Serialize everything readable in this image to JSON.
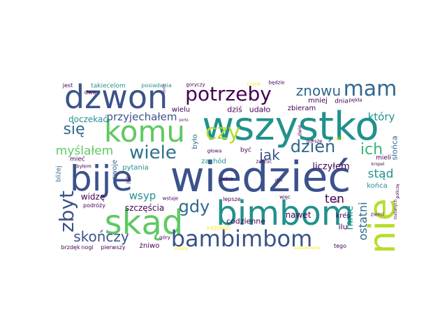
{
  "colors": {
    "background": "#ffffff",
    "c1": "#3b528b",
    "c2": "#21918c",
    "c3": "#5ec962",
    "c4": "#b5de2b",
    "c5": "#440154",
    "c6": "#31688e",
    "c7": "#2c728e",
    "c8": "#35b779",
    "c9": "#fde725",
    "c10": "#6ece58"
  },
  "words": [
    {
      "id": "wiedziec",
      "text": "wiedzieć"
    },
    {
      "id": "wszystko",
      "text": "wszystko"
    },
    {
      "id": "bije",
      "text": "bije"
    },
    {
      "id": "bimbom",
      "text": "bimbom"
    },
    {
      "id": "dzwon",
      "text": "dzwon"
    },
    {
      "id": "skad",
      "text": "skąd"
    },
    {
      "id": "nie",
      "text": "nie"
    },
    {
      "id": "bambimbom",
      "text": "bambimbom"
    },
    {
      "id": "komu",
      "text": "komu"
    },
    {
      "id": "potrzeby",
      "text": "potrzeby"
    },
    {
      "id": "mam",
      "text": "mam"
    },
    {
      "id": "czy",
      "text": "czy"
    },
    {
      "id": "wiele",
      "text": "wiele"
    },
    {
      "id": "znowu",
      "text": "znowu"
    },
    {
      "id": "zbyt",
      "text": "zbyt"
    },
    {
      "id": "dzien",
      "text": "dzień"
    },
    {
      "id": "gdy",
      "text": "gdy"
    },
    {
      "id": "sie",
      "text": "się"
    },
    {
      "id": "ich",
      "text": "ich"
    },
    {
      "id": "skonczy",
      "text": "skończy"
    },
    {
      "id": "jak",
      "text": "jak"
    },
    {
      "id": "myslalem",
      "text": "myślałem"
    },
    {
      "id": "przyjechalem",
      "text": "przyjechałem"
    },
    {
      "id": "ktory",
      "text": "który"
    },
    {
      "id": "ten",
      "text": "ten"
    },
    {
      "id": "stad",
      "text": "stąd"
    },
    {
      "id": "ostatni",
      "text": "ostatni"
    },
    {
      "id": "mnie",
      "text": "mnie"
    },
    {
      "id": "wsyp",
      "text": "wsyp"
    },
    {
      "id": "doczekac",
      "text": "doczekać"
    },
    {
      "id": "liczylem",
      "text": "liczyłem"
    },
    {
      "id": "szczescia",
      "text": "szczęścia"
    },
    {
      "id": "widze",
      "text": "widzę"
    },
    {
      "id": "codzienne",
      "text": "codzienne"
    },
    {
      "id": "nawet",
      "text": "nawet"
    },
    {
      "id": "dzis",
      "text": "dziś"
    },
    {
      "id": "udalo",
      "text": "udało"
    },
    {
      "id": "zbieram",
      "text": "zbieram"
    },
    {
      "id": "mniej",
      "text": "mniej"
    },
    {
      "id": "konca",
      "text": "końca"
    },
    {
      "id": "slonca",
      "text": "słońca"
    },
    {
      "id": "ilu",
      "text": "ilu"
    },
    {
      "id": "kres",
      "text": "kres"
    },
    {
      "id": "zachod",
      "text": "zachód"
    },
    {
      "id": "pytania",
      "text": "pytania"
    },
    {
      "id": "zniwo",
      "text": "żniwo"
    },
    {
      "id": "pierwszy",
      "text": "pierwszy"
    },
    {
      "id": "takiecelom",
      "text": "takiecelom"
    },
    {
      "id": "posiadania",
      "text": "posiadania"
    },
    {
      "id": "wielu",
      "text": "wielu"
    },
    {
      "id": "bylo",
      "text": "było"
    },
    {
      "id": "swoje",
      "text": "swoje"
    },
    {
      "id": "blizej",
      "text": "bliżej"
    },
    {
      "id": "miec",
      "text": "mieć"
    },
    {
      "id": "bylem",
      "text": "byłem"
    },
    {
      "id": "byc",
      "text": "być"
    },
    {
      "id": "podrozy",
      "text": "podróży"
    },
    {
      "id": "brzdek",
      "text": "brzdęk"
    },
    {
      "id": "nogi",
      "text": "nogi"
    },
    {
      "id": "jest",
      "text": "jest"
    },
    {
      "id": "dwa",
      "text": "dwa"
    },
    {
      "id": "goryczy",
      "text": "goryczy"
    },
    {
      "id": "bedzie",
      "text": "będzie"
    },
    {
      "id": "czara",
      "text": "czara"
    },
    {
      "id": "dnia",
      "text": "dnia"
    },
    {
      "id": "pekla",
      "text": "pękła"
    },
    {
      "id": "glowa",
      "text": "głowa"
    },
    {
      "id": "pelna",
      "text": "pełna"
    },
    {
      "id": "lepsze",
      "text": "lepsze"
    },
    {
      "id": "wiec",
      "text": "więc"
    },
    {
      "id": "kazdego",
      "text": "każdego"
    },
    {
      "id": "gory",
      "text": "góry"
    },
    {
      "id": "wstaje",
      "text": "wstaje"
    },
    {
      "id": "juz",
      "text": "już"
    },
    {
      "id": "mieli",
      "text": "mieli"
    },
    {
      "id": "gorsze",
      "text": "gorsze"
    },
    {
      "id": "tego",
      "text": "tego"
    },
    {
      "id": "tak",
      "text": "tak"
    },
    {
      "id": "ziemi",
      "text": "ziemi"
    },
    {
      "id": "nich",
      "text": "nich"
    },
    {
      "id": "dwie",
      "text": "dwie"
    },
    {
      "id": "zarzuc",
      "text": "zarzuć"
    },
    {
      "id": "dni",
      "text": "dni"
    },
    {
      "id": "kropel",
      "text": "kropel"
    },
    {
      "id": "poliwcz",
      "text": "policzę"
    },
    {
      "id": "rozlanych",
      "text": "rozlanych"
    },
    {
      "id": "zadowolenie",
      "text": "zadowolenie"
    },
    {
      "id": "miasta",
      "text": "miasta"
    },
    {
      "id": "taniej",
      "text": "taniej"
    },
    {
      "id": "pani",
      "text": "parta"
    }
  ]
}
